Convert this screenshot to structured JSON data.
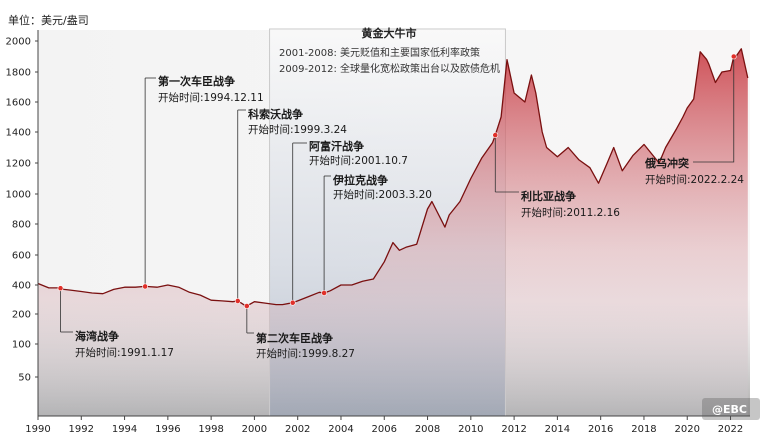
{
  "chart_data": {
    "type": "line",
    "ylabel": "单位：美元/盎司",
    "ylim": [
      0,
      2100
    ],
    "yticks": [
      50,
      100,
      200,
      400,
      600,
      800,
      1000,
      1200,
      1400,
      1600,
      1800,
      2000
    ],
    "xlim": [
      1990.0,
      2022.9
    ],
    "xticks": [
      "1990",
      "1992",
      "1994",
      "1996",
      "1998",
      "2000",
      "2002",
      "2004",
      "2006",
      "2008",
      "2010",
      "2012",
      "2014",
      "2016",
      "2018",
      "2020",
      "2022"
    ],
    "grid": false,
    "series": [
      {
        "x": [
          1990.0,
          1990.5,
          1991.0,
          1991.2,
          1991.5,
          1992.0,
          1992.5,
          1993.0,
          1993.5,
          1994.0,
          1994.5,
          1994.95,
          1995.5,
          1996.0,
          1996.5,
          1997.0,
          1997.5,
          1998.0,
          1998.5,
          1999.0,
          1999.24,
          1999.5,
          1999.65,
          2000.0,
          2000.5,
          2001.0,
          2001.3,
          2001.78,
          2002.0,
          2002.5,
          2003.0,
          2003.22,
          2003.5,
          2004.0,
          2004.5,
          2005.0,
          2005.5,
          2006.0,
          2006.4,
          2006.7,
          2007.0,
          2007.5,
          2008.0,
          2008.2,
          2008.8,
          2009.0,
          2009.5,
          2010.0,
          2010.5,
          2011.0,
          2011.13,
          2011.4,
          2011.67,
          2012.0,
          2012.5,
          2012.8,
          2013.0,
          2013.3,
          2013.5,
          2014.0,
          2014.5,
          2015.0,
          2015.5,
          2015.9,
          2016.3,
          2016.6,
          2017.0,
          2017.5,
          2018.0,
          2018.7,
          2019.0,
          2019.5,
          2019.8,
          2020.0,
          2020.3,
          2020.6,
          2020.9,
          2021.0,
          2021.3,
          2021.6,
          2022.0,
          2022.15,
          2022.2,
          2022.5,
          2022.8
        ],
        "values": [
          410,
          380,
          380,
          370,
          365,
          355,
          345,
          340,
          370,
          385,
          385,
          390,
          385,
          400,
          385,
          350,
          330,
          295,
          290,
          285,
          290,
          265,
          255,
          285,
          275,
          265,
          265,
          278,
          290,
          320,
          350,
          345,
          360,
          400,
          400,
          425,
          440,
          555,
          680,
          630,
          650,
          670,
          900,
          950,
          780,
          860,
          950,
          1100,
          1230,
          1330,
          1380,
          1500,
          1880,
          1660,
          1600,
          1780,
          1660,
          1400,
          1300,
          1240,
          1300,
          1220,
          1170,
          1070,
          1200,
          1300,
          1150,
          1250,
          1320,
          1200,
          1300,
          1420,
          1500,
          1560,
          1620,
          1930,
          1880,
          1850,
          1730,
          1800,
          1810,
          1900,
          1890,
          1950,
          1760
        ]
      }
    ],
    "shaded_region": {
      "x_start": 2000.7,
      "x_end": 2011.6,
      "title": "黄金大牛市",
      "lines": [
        "2001-2008: 美元贬值和主要国家低利率政策",
        "2009-2012: 全球量化宽松政策出台以及欧债危机"
      ]
    },
    "annotations": [
      {
        "id": "gulf",
        "x": 1991.04,
        "title": "海湾战争",
        "subtitle": "开始时间:1991.1.17",
        "label_side": "below"
      },
      {
        "id": "chechen1",
        "x": 1994.95,
        "title": "第一次车臣战争",
        "subtitle": "开始时间:1994.12.11",
        "label_side": "above"
      },
      {
        "id": "kosovo",
        "x": 1999.23,
        "title": "科索沃战争",
        "subtitle": "开始时间:1999.3.24",
        "label_side": "above"
      },
      {
        "id": "chechen2",
        "x": 1999.65,
        "title": "第二次车臣战争",
        "subtitle": "开始时间:1999.8.27",
        "label_side": "below"
      },
      {
        "id": "afghan",
        "x": 2001.77,
        "title": "阿富汗战争",
        "subtitle": "开始时间:2001.10.7",
        "label_side": "above"
      },
      {
        "id": "iraq",
        "x": 2003.22,
        "title": "伊拉克战争",
        "subtitle": "开始时间:2003.3.20",
        "label_side": "above"
      },
      {
        "id": "libya",
        "x": 2011.13,
        "title": "利比亚战争",
        "subtitle": "开始时间:2011.2.16",
        "label_side": "below"
      },
      {
        "id": "ukraine",
        "x": 2022.15,
        "title": "俄乌冲突",
        "subtitle": "开始时间:2022.2.24",
        "label_side": "left"
      }
    ],
    "colors": {
      "line": "#7a1010",
      "fill": "#c8343c",
      "marker": "#e0302a",
      "band": "#9aa7bd"
    }
  },
  "watermark": "@EBC"
}
